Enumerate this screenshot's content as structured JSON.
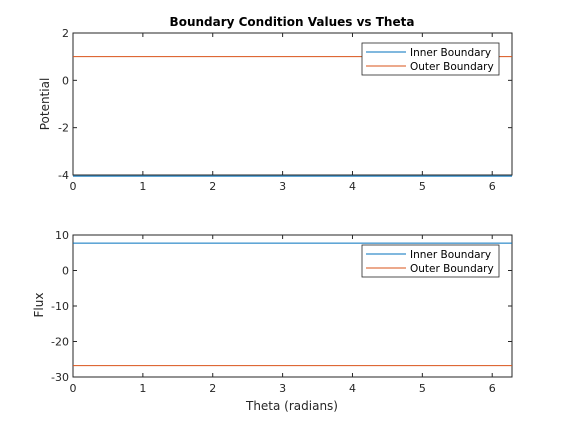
{
  "chart_data": [
    {
      "type": "line",
      "title": "Boundary Condition Values vs Theta",
      "xlabel": "",
      "ylabel": "Potential",
      "xlim": [
        0,
        6.2832
      ],
      "ylim": [
        -4,
        2
      ],
      "xticks": [
        0,
        1,
        2,
        3,
        4,
        5,
        6
      ],
      "yticks": [
        -4,
        -2,
        0,
        2
      ],
      "grid": false,
      "legend_position": "top-right",
      "series": [
        {
          "name": "Inner Boundary",
          "color": "#0072BD",
          "x": [
            0,
            6.2832
          ],
          "y": [
            -4.05,
            -4.05
          ]
        },
        {
          "name": "Outer Boundary",
          "color": "#D95319",
          "x": [
            0,
            6.2832
          ],
          "y": [
            1.0,
            1.0
          ]
        }
      ]
    },
    {
      "type": "line",
      "title": "",
      "xlabel": "Theta (radians)",
      "ylabel": "Flux",
      "xlim": [
        0,
        6.2832
      ],
      "ylim": [
        -30,
        10
      ],
      "xticks": [
        0,
        1,
        2,
        3,
        4,
        5,
        6
      ],
      "yticks": [
        -30,
        -20,
        -10,
        0,
        10
      ],
      "grid": false,
      "legend_position": "top-right",
      "series": [
        {
          "name": "Inner Boundary",
          "color": "#0072BD",
          "x": [
            0,
            6.2832
          ],
          "y": [
            7.7,
            7.7
          ]
        },
        {
          "name": "Outer Boundary",
          "color": "#D95319",
          "x": [
            0,
            6.2832
          ],
          "y": [
            -26.8,
            -26.8
          ]
        }
      ]
    }
  ]
}
